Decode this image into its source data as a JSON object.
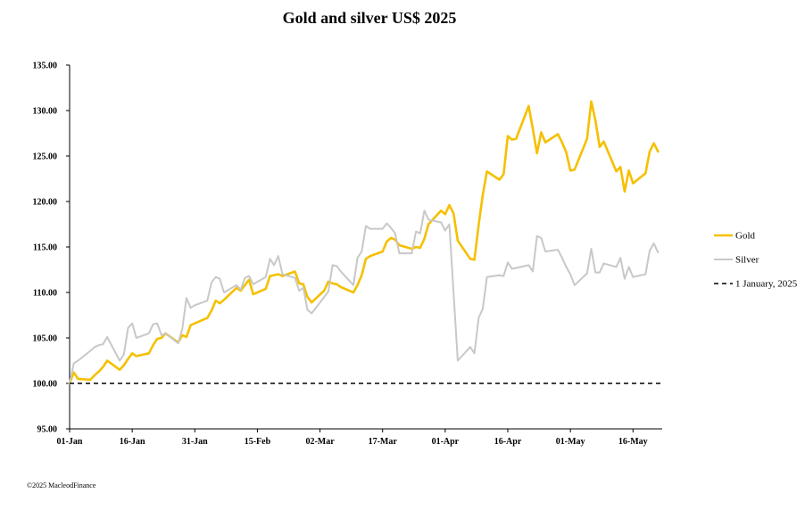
{
  "copyright": "©2025 MacleodFinance",
  "chart_data": {
    "type": "line",
    "title": "Gold and silver  US$ 2025",
    "xlabel": "",
    "ylabel": "",
    "ylim": [
      95,
      135
    ],
    "yticks": [
      95,
      100,
      105,
      110,
      115,
      120,
      125,
      130,
      135
    ],
    "ytick_labels": [
      "95.00",
      "100.00",
      "105.00",
      "110.00",
      "115.00",
      "120.00",
      "125.00",
      "130.00",
      "135.00"
    ],
    "xlim": [
      "2025-01-01",
      "2025-05-23"
    ],
    "xticks": [
      "2025-01-01",
      "2025-01-16",
      "2025-01-31",
      "2025-02-15",
      "2025-03-02",
      "2025-03-17",
      "2025-04-01",
      "2025-04-16",
      "2025-05-01",
      "2025-05-16"
    ],
    "xtick_labels": [
      "01-Jan",
      "16-Jan",
      "31-Jan",
      "15-Feb",
      "02-Mar",
      "17-Mar",
      "01-Apr",
      "16-Apr",
      "01-May",
      "16-May"
    ],
    "grid": false,
    "legend_position": "right",
    "series": [
      {
        "name": "Gold",
        "color": "#F5C000",
        "style": "solid",
        "points": [
          [
            "2025-01-01",
            100.0
          ],
          [
            "2025-01-02",
            101.2
          ],
          [
            "2025-01-03",
            100.5
          ],
          [
            "2025-01-06",
            100.4
          ],
          [
            "2025-01-07",
            100.9
          ],
          [
            "2025-01-08",
            101.3
          ],
          [
            "2025-01-09",
            101.8
          ],
          [
            "2025-01-10",
            102.5
          ],
          [
            "2025-01-13",
            101.5
          ],
          [
            "2025-01-14",
            102.0
          ],
          [
            "2025-01-15",
            102.7
          ],
          [
            "2025-01-16",
            103.3
          ],
          [
            "2025-01-17",
            103.0
          ],
          [
            "2025-01-20",
            103.3
          ],
          [
            "2025-01-21",
            104.2
          ],
          [
            "2025-01-22",
            104.9
          ],
          [
            "2025-01-23",
            105.0
          ],
          [
            "2025-01-24",
            105.5
          ],
          [
            "2025-01-27",
            104.5
          ],
          [
            "2025-01-28",
            105.3
          ],
          [
            "2025-01-29",
            105.1
          ],
          [
            "2025-01-30",
            106.4
          ],
          [
            "2025-01-31",
            106.6
          ],
          [
            "2025-02-03",
            107.2
          ],
          [
            "2025-02-04",
            108.0
          ],
          [
            "2025-02-05",
            109.1
          ],
          [
            "2025-02-06",
            108.8
          ],
          [
            "2025-02-07",
            109.2
          ],
          [
            "2025-02-10",
            110.5
          ],
          [
            "2025-02-11",
            110.2
          ],
          [
            "2025-02-12",
            110.8
          ],
          [
            "2025-02-13",
            111.4
          ],
          [
            "2025-02-14",
            109.8
          ],
          [
            "2025-02-17",
            110.4
          ],
          [
            "2025-02-18",
            111.8
          ],
          [
            "2025-02-19",
            111.9
          ],
          [
            "2025-02-20",
            112.0
          ],
          [
            "2025-02-21",
            111.8
          ],
          [
            "2025-02-24",
            112.3
          ],
          [
            "2025-02-25",
            111.0
          ],
          [
            "2025-02-26",
            110.9
          ],
          [
            "2025-02-27",
            109.5
          ],
          [
            "2025-02-28",
            108.9
          ],
          [
            "2025-03-03",
            110.2
          ],
          [
            "2025-03-04",
            111.2
          ],
          [
            "2025-03-05",
            111.0
          ],
          [
            "2025-03-06",
            110.9
          ],
          [
            "2025-03-07",
            110.6
          ],
          [
            "2025-03-10",
            110.0
          ],
          [
            "2025-03-11",
            110.8
          ],
          [
            "2025-03-12",
            111.9
          ],
          [
            "2025-03-13",
            113.7
          ],
          [
            "2025-03-14",
            114.0
          ],
          [
            "2025-03-17",
            114.5
          ],
          [
            "2025-03-18",
            115.6
          ],
          [
            "2025-03-19",
            116.0
          ],
          [
            "2025-03-20",
            115.8
          ],
          [
            "2025-03-21",
            115.2
          ],
          [
            "2025-03-24",
            114.8
          ],
          [
            "2025-03-25",
            115.0
          ],
          [
            "2025-03-26",
            114.9
          ],
          [
            "2025-03-27",
            115.9
          ],
          [
            "2025-03-28",
            117.5
          ],
          [
            "2025-03-31",
            119.0
          ],
          [
            "2025-04-01",
            118.6
          ],
          [
            "2025-04-02",
            119.6
          ],
          [
            "2025-04-03",
            118.7
          ],
          [
            "2025-04-04",
            115.7
          ],
          [
            "2025-04-07",
            113.7
          ],
          [
            "2025-04-08",
            113.6
          ],
          [
            "2025-04-09",
            117.4
          ],
          [
            "2025-04-10",
            120.7
          ],
          [
            "2025-04-11",
            123.3
          ],
          [
            "2025-04-14",
            122.4
          ],
          [
            "2025-04-15",
            123.0
          ],
          [
            "2025-04-16",
            127.2
          ],
          [
            "2025-04-17",
            126.8
          ],
          [
            "2025-04-18",
            126.9
          ],
          [
            "2025-04-21",
            130.5
          ],
          [
            "2025-04-22",
            128.0
          ],
          [
            "2025-04-23",
            125.3
          ],
          [
            "2025-04-24",
            127.6
          ],
          [
            "2025-04-25",
            126.5
          ],
          [
            "2025-04-28",
            127.4
          ],
          [
            "2025-04-29",
            126.5
          ],
          [
            "2025-04-30",
            125.4
          ],
          [
            "2025-05-01",
            123.4
          ],
          [
            "2025-05-02",
            123.5
          ],
          [
            "2025-05-05",
            126.9
          ],
          [
            "2025-05-06",
            131.0
          ],
          [
            "2025-05-07",
            128.9
          ],
          [
            "2025-05-08",
            126.0
          ],
          [
            "2025-05-09",
            126.6
          ],
          [
            "2025-05-12",
            123.3
          ],
          [
            "2025-05-13",
            123.8
          ],
          [
            "2025-05-14",
            121.1
          ],
          [
            "2025-05-15",
            123.4
          ],
          [
            "2025-05-16",
            122.0
          ],
          [
            "2025-05-19",
            123.1
          ],
          [
            "2025-05-20",
            125.5
          ],
          [
            "2025-05-21",
            126.4
          ],
          [
            "2025-05-22",
            125.5
          ]
        ]
      },
      {
        "name": "Silver",
        "color": "#C8C8C8",
        "style": "solid",
        "points": [
          [
            "2025-01-01",
            100.0
          ],
          [
            "2025-01-02",
            102.2
          ],
          [
            "2025-01-03",
            102.5
          ],
          [
            "2025-01-06",
            103.6
          ],
          [
            "2025-01-07",
            104.0
          ],
          [
            "2025-01-08",
            104.2
          ],
          [
            "2025-01-09",
            104.3
          ],
          [
            "2025-01-10",
            105.1
          ],
          [
            "2025-01-13",
            102.5
          ],
          [
            "2025-01-14",
            103.2
          ],
          [
            "2025-01-15",
            106.1
          ],
          [
            "2025-01-16",
            106.6
          ],
          [
            "2025-01-17",
            105.0
          ],
          [
            "2025-01-20",
            105.5
          ],
          [
            "2025-01-21",
            106.5
          ],
          [
            "2025-01-22",
            106.6
          ],
          [
            "2025-01-23",
            105.3
          ],
          [
            "2025-01-24",
            105.5
          ],
          [
            "2025-01-27",
            104.4
          ],
          [
            "2025-01-28",
            106.0
          ],
          [
            "2025-01-29",
            109.4
          ],
          [
            "2025-01-30",
            108.3
          ],
          [
            "2025-01-31",
            108.6
          ],
          [
            "2025-02-03",
            109.1
          ],
          [
            "2025-02-04",
            111.1
          ],
          [
            "2025-02-05",
            111.7
          ],
          [
            "2025-02-06",
            111.5
          ],
          [
            "2025-02-07",
            110.0
          ],
          [
            "2025-02-10",
            110.8
          ],
          [
            "2025-02-11",
            110.3
          ],
          [
            "2025-02-12",
            111.6
          ],
          [
            "2025-02-13",
            111.8
          ],
          [
            "2025-02-14",
            110.9
          ],
          [
            "2025-02-17",
            111.7
          ],
          [
            "2025-02-18",
            113.7
          ],
          [
            "2025-02-19",
            113.0
          ],
          [
            "2025-02-20",
            114.0
          ],
          [
            "2025-02-21",
            112.0
          ],
          [
            "2025-02-24",
            111.6
          ],
          [
            "2025-02-25",
            110.2
          ],
          [
            "2025-02-26",
            110.5
          ],
          [
            "2025-02-27",
            108.1
          ],
          [
            "2025-02-28",
            107.7
          ],
          [
            "2025-03-03",
            109.5
          ],
          [
            "2025-03-04",
            110.1
          ],
          [
            "2025-03-05",
            113.0
          ],
          [
            "2025-03-06",
            112.9
          ],
          [
            "2025-03-07",
            112.3
          ],
          [
            "2025-03-10",
            110.8
          ],
          [
            "2025-03-11",
            113.8
          ],
          [
            "2025-03-12",
            114.5
          ],
          [
            "2025-03-13",
            117.3
          ],
          [
            "2025-03-14",
            117.0
          ],
          [
            "2025-03-17",
            117.0
          ],
          [
            "2025-03-18",
            117.6
          ],
          [
            "2025-03-19",
            117.1
          ],
          [
            "2025-03-20",
            116.5
          ],
          [
            "2025-03-21",
            114.3
          ],
          [
            "2025-03-24",
            114.3
          ],
          [
            "2025-03-25",
            116.7
          ],
          [
            "2025-03-26",
            116.5
          ],
          [
            "2025-03-27",
            119.0
          ],
          [
            "2025-03-28",
            118.0
          ],
          [
            "2025-03-31",
            117.7
          ],
          [
            "2025-04-01",
            116.8
          ],
          [
            "2025-04-02",
            117.5
          ],
          [
            "2025-04-03",
            110.0
          ],
          [
            "2025-04-04",
            102.5
          ],
          [
            "2025-04-07",
            104.0
          ],
          [
            "2025-04-08",
            103.3
          ],
          [
            "2025-04-09",
            107.2
          ],
          [
            "2025-04-10",
            108.2
          ],
          [
            "2025-04-11",
            111.7
          ],
          [
            "2025-04-14",
            111.9
          ],
          [
            "2025-04-15",
            111.8
          ],
          [
            "2025-04-16",
            113.3
          ],
          [
            "2025-04-17",
            112.6
          ],
          [
            "2025-04-18",
            112.7
          ],
          [
            "2025-04-21",
            113.0
          ],
          [
            "2025-04-22",
            112.3
          ],
          [
            "2025-04-23",
            116.2
          ],
          [
            "2025-04-24",
            116.0
          ],
          [
            "2025-04-25",
            114.5
          ],
          [
            "2025-04-28",
            114.7
          ],
          [
            "2025-04-29",
            113.8
          ],
          [
            "2025-04-30",
            112.8
          ],
          [
            "2025-05-01",
            112.0
          ],
          [
            "2025-05-02",
            110.8
          ],
          [
            "2025-05-05",
            112.1
          ],
          [
            "2025-05-06",
            114.8
          ],
          [
            "2025-05-07",
            112.2
          ],
          [
            "2025-05-08",
            112.2
          ],
          [
            "2025-05-09",
            113.2
          ],
          [
            "2025-05-12",
            112.8
          ],
          [
            "2025-05-13",
            113.8
          ],
          [
            "2025-05-14",
            111.5
          ],
          [
            "2025-05-15",
            112.8
          ],
          [
            "2025-05-16",
            111.7
          ],
          [
            "2025-05-19",
            112.0
          ],
          [
            "2025-05-20",
            114.6
          ],
          [
            "2025-05-21",
            115.4
          ],
          [
            "2025-05-22",
            114.4
          ]
        ]
      },
      {
        "name": "1 January, 2025",
        "color": "#000000",
        "style": "dashed",
        "points": [
          [
            "2025-01-01",
            100.0
          ],
          [
            "2025-05-23",
            100.0
          ]
        ]
      }
    ]
  }
}
